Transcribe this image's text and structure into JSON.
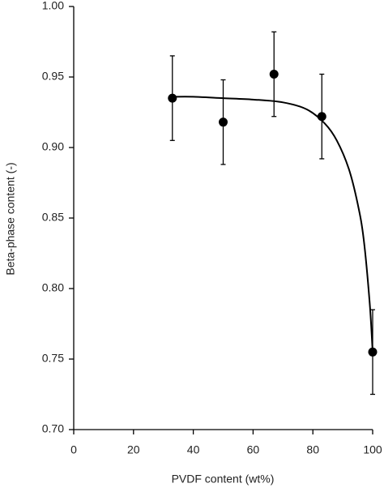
{
  "chart_data": {
    "type": "scatter",
    "x_label": "PVDF content (wt%)",
    "y_label": "Beta-phase content (-)",
    "x": [
      33,
      50,
      67,
      83,
      100
    ],
    "values": [
      0.935,
      0.918,
      0.952,
      0.922,
      0.755
    ],
    "errors": [
      0.03,
      0.03,
      0.03,
      0.03,
      0.03
    ],
    "color": "#000000",
    "fit": {
      "x": [
        33,
        40,
        50,
        60,
        70,
        78,
        84,
        88,
        92,
        95,
        97,
        99,
        100
      ],
      "values": [
        0.936,
        0.936,
        0.935,
        0.934,
        0.932,
        0.927,
        0.917,
        0.905,
        0.885,
        0.86,
        0.835,
        0.79,
        0.755
      ]
    },
    "xlim": [
      0,
      100
    ],
    "xticks": [
      0,
      20,
      40,
      60,
      80,
      100
    ],
    "ylim": [
      0.7,
      1.0
    ],
    "yticks": [
      {
        "value": 0.7,
        "label": "0.70"
      },
      {
        "value": 0.75,
        "label": "0.75"
      },
      {
        "value": 0.8,
        "label": "0.80"
      },
      {
        "value": 0.85,
        "label": "0.85"
      },
      {
        "value": 0.9,
        "label": "0.90"
      },
      {
        "value": 0.95,
        "label": "0.95"
      },
      {
        "value": 1.0,
        "label": "1.00"
      }
    ],
    "grid": false
  }
}
